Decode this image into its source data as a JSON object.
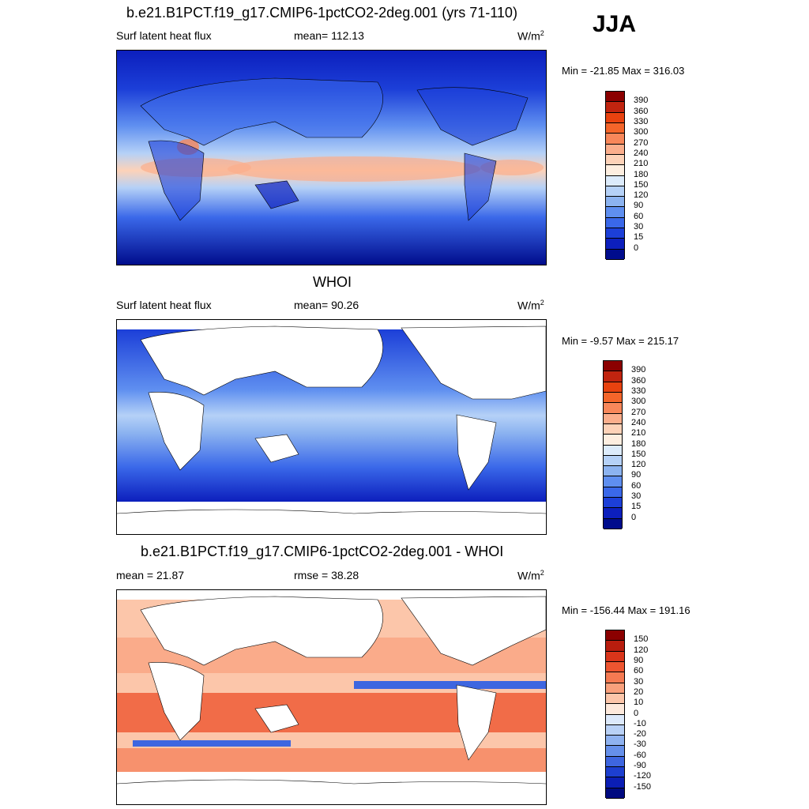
{
  "season": "JJA",
  "panels": [
    {
      "title": "b.e21.B1PCT.f19_g17.CMIP6-1pctCO2-2deg.001 (yrs 71-110)",
      "left_label": "Surf latent heat flux",
      "center_label": "mean= 112.13",
      "units": "W/m",
      "units_sup": "2",
      "minmax": "Min = -21.85 Max = 316.03",
      "colorbar_labels": [
        "390",
        "360",
        "330",
        "300",
        "270",
        "240",
        "210",
        "180",
        "150",
        "120",
        "90",
        "60",
        "30",
        "15",
        "0"
      ],
      "colorbar_colors": [
        "#8b0000",
        "#c1240f",
        "#e8420f",
        "#f4652a",
        "#f8875a",
        "#fbae8c",
        "#fdd2b8",
        "#fdeee0",
        "#dcebfb",
        "#b5d1f7",
        "#8cb3f0",
        "#5f8ff0",
        "#3a68e9",
        "#1c3fd8",
        "#0c1fbd",
        "#000c8c"
      ]
    },
    {
      "title": "WHOI",
      "left_label": "Surf latent heat flux",
      "center_label": "mean=  90.26",
      "units": "W/m",
      "units_sup": "2",
      "minmax": "Min =  -9.57 Max = 215.17",
      "colorbar_labels": [
        "390",
        "360",
        "330",
        "300",
        "270",
        "240",
        "210",
        "180",
        "150",
        "120",
        "90",
        "60",
        "30",
        "15",
        "0"
      ],
      "colorbar_colors": [
        "#8b0000",
        "#c1240f",
        "#e8420f",
        "#f4652a",
        "#f8875a",
        "#fbae8c",
        "#fdd2b8",
        "#fdeee0",
        "#dcebfb",
        "#b5d1f7",
        "#8cb3f0",
        "#5f8ff0",
        "#3a68e9",
        "#1c3fd8",
        "#0c1fbd",
        "#000c8c"
      ]
    },
    {
      "title": "b.e21.B1PCT.f19_g17.CMIP6-1pctCO2-2deg.001 - WHOI",
      "left_label": "mean =  21.87",
      "center_label": "rmse =  38.28",
      "units": "W/m",
      "units_sup": "2",
      "minmax": "Min = -156.44 Max = 191.16",
      "colorbar_labels": [
        "150",
        "120",
        "90",
        "60",
        "30",
        "20",
        "10",
        "0",
        "-10",
        "-20",
        "-30",
        "-60",
        "-90",
        "-120",
        "-150"
      ],
      "colorbar_colors": [
        "#8b0000",
        "#b81d0e",
        "#d9351a",
        "#ee5530",
        "#f57a52",
        "#f9a07c",
        "#fcc6aa",
        "#fde9dc",
        "#dce9fb",
        "#b9d1f6",
        "#8fb2f0",
        "#6690ea",
        "#3e66e0",
        "#1d3fd0",
        "#0b1eb5",
        "#000a80"
      ]
    }
  ]
}
